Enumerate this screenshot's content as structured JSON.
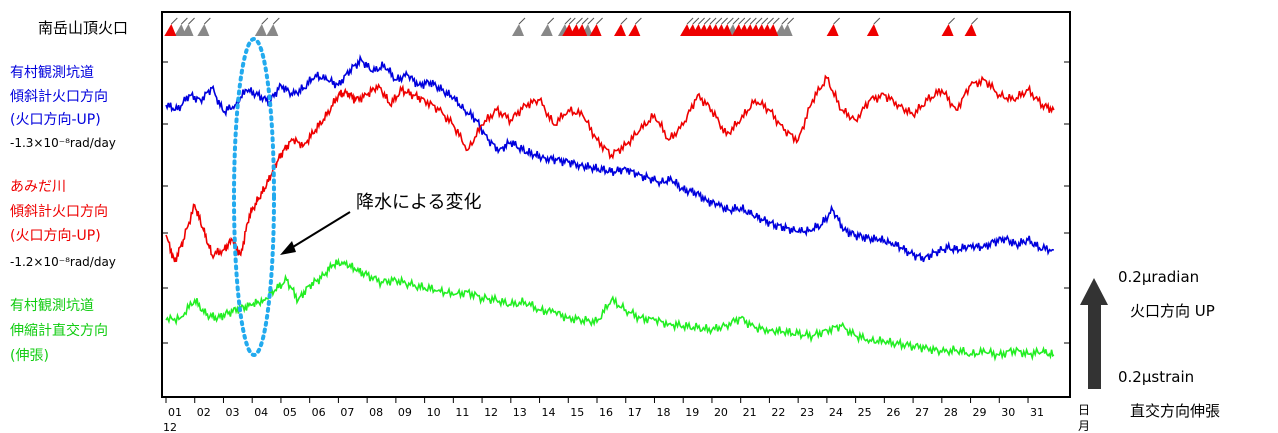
{
  "chart_data": {
    "type": "line",
    "x_unit_label": "日",
    "x_unit_label2": "月",
    "month_label": "12",
    "x_ticks": [
      "01",
      "02",
      "03",
      "04",
      "05",
      "06",
      "07",
      "08",
      "09",
      "10",
      "11",
      "12",
      "13",
      "14",
      "15",
      "16",
      "17",
      "18",
      "19",
      "20",
      "21",
      "22",
      "23",
      "24",
      "25",
      "26",
      "27",
      "28",
      "29",
      "30",
      "31"
    ],
    "eruption_row_label": "南岳山頂火口",
    "series": [
      {
        "name_lines": [
          "有村観測坑道",
          "傾斜計火口方向",
          "(火口方向-UP)"
        ],
        "trend_note": "-1.3×10⁻⁸rad/day",
        "color": "#0000dd",
        "x": [
          1,
          1.4,
          1.8,
          2.2,
          2.6,
          3,
          3.4,
          3.8,
          4.2,
          4.6,
          5,
          5.4,
          5.8,
          6.2,
          6.6,
          7,
          7.4,
          7.8,
          8.2,
          8.6,
          9,
          9.4,
          9.8,
          10.2,
          10.6,
          11,
          11.4,
          11.8,
          12.2,
          12.6,
          13,
          13.4,
          13.8,
          14.2,
          14.6,
          15,
          15.4,
          15.8,
          16.2,
          16.6,
          17,
          17.4,
          17.8,
          18.2,
          18.6,
          19,
          19.4,
          19.8,
          20.2,
          20.6,
          21,
          21.4,
          21.8,
          22.2,
          22.6,
          23,
          23.4,
          23.8,
          24.2,
          24.6,
          25,
          25.4,
          25.8,
          26.2,
          26.6,
          27,
          27.4,
          27.8,
          28.2,
          28.6,
          29,
          29.4,
          29.8,
          30.2,
          30.6,
          31,
          31.4,
          31.9
        ],
        "y": [
          105,
          110,
          95,
          100,
          88,
          112,
          105,
          90,
          95,
          102,
          85,
          95,
          88,
          75,
          80,
          85,
          70,
          60,
          72,
          65,
          80,
          75,
          85,
          82,
          90,
          98,
          110,
          120,
          140,
          150,
          142,
          150,
          155,
          158,
          160,
          162,
          165,
          168,
          170,
          172,
          168,
          175,
          178,
          182,
          180,
          190,
          192,
          200,
          205,
          210,
          208,
          215,
          220,
          225,
          228,
          232,
          230,
          225,
          210,
          230,
          235,
          238,
          240,
          242,
          248,
          255,
          258,
          252,
          248,
          250,
          245,
          248,
          242,
          238,
          245,
          240,
          248,
          250
        ]
      },
      {
        "name_lines": [
          "あみだ川",
          "傾斜計火口方向",
          "(火口方向-UP)"
        ],
        "trend_note": "-1.2×10⁻⁸rad/day",
        "color": "#ee0000",
        "x": [
          1,
          1.3,
          1.6,
          2,
          2.3,
          2.6,
          3,
          3.3,
          3.6,
          3.9,
          4.2,
          4.5,
          4.8,
          5.1,
          5.4,
          5.8,
          6.2,
          6.6,
          7,
          7.3,
          7.6,
          8,
          8.4,
          8.8,
          9.2,
          9.6,
          10,
          10.5,
          11,
          11.5,
          12,
          12.5,
          13,
          13.5,
          14,
          14.5,
          15,
          15.5,
          16,
          16.5,
          17,
          17.5,
          18,
          18.5,
          19,
          19.5,
          20,
          20.5,
          21,
          21.5,
          22,
          22.5,
          23,
          23.5,
          24,
          24.5,
          25,
          25.5,
          26,
          26.5,
          27,
          27.5,
          28,
          28.5,
          29,
          29.5,
          30,
          30.5,
          31,
          31.5,
          31.9
        ],
        "y": [
          235,
          262,
          240,
          205,
          230,
          255,
          250,
          240,
          255,
          215,
          200,
          185,
          165,
          150,
          140,
          145,
          130,
          115,
          95,
          92,
          100,
          95,
          85,
          105,
          90,
          95,
          100,
          110,
          125,
          150,
          125,
          110,
          120,
          105,
          100,
          125,
          110,
          115,
          140,
          155,
          145,
          130,
          115,
          140,
          125,
          95,
          110,
          135,
          120,
          100,
          110,
          130,
          140,
          100,
          78,
          110,
          120,
          100,
          95,
          105,
          115,
          100,
          90,
          110,
          85,
          80,
          95,
          100,
          90,
          105,
          110
        ]
      },
      {
        "name_lines": [
          "有村観測坑道",
          "伸縮計直交方向",
          "(伸張)"
        ],
        "trend_note": "",
        "color": "#22ee22",
        "x": [
          1,
          1.5,
          2,
          2.4,
          2.8,
          3.2,
          3.6,
          4,
          4.4,
          4.8,
          5.2,
          5.6,
          6,
          6.4,
          6.8,
          7.2,
          7.6,
          8,
          8.5,
          9,
          9.5,
          10,
          10.5,
          11,
          11.5,
          12,
          12.5,
          13,
          13.5,
          14,
          14.5,
          15,
          15.5,
          16,
          16.5,
          17,
          17.5,
          18,
          18.5,
          19,
          19.5,
          20,
          20.5,
          21,
          21.5,
          22,
          22.5,
          23,
          23.5,
          24,
          24.5,
          25,
          25.5,
          26,
          26.5,
          27,
          27.5,
          28,
          28.5,
          29,
          29.5,
          30,
          30.5,
          31,
          31.5,
          31.9
        ],
        "y": [
          320,
          318,
          300,
          315,
          318,
          312,
          308,
          305,
          300,
          290,
          280,
          300,
          285,
          278,
          265,
          262,
          270,
          275,
          282,
          280,
          285,
          288,
          290,
          295,
          292,
          298,
          300,
          305,
          302,
          310,
          312,
          318,
          320,
          322,
          300,
          310,
          318,
          320,
          324,
          326,
          328,
          330,
          325,
          318,
          328,
          330,
          332,
          334,
          336,
          330,
          326,
          336,
          340,
          342,
          344,
          346,
          348,
          352,
          350,
          354,
          352,
          355,
          350,
          354,
          352,
          355
        ]
      }
    ],
    "scale_labels": [
      "0.2μradian",
      "火口方向 UP",
      "0.2μstrain",
      "直交方向伸張"
    ],
    "annotation": "降水による変化",
    "eruptions": {
      "red": [
        1.15,
        15.0,
        15.25,
        15.45,
        15.95,
        16.8,
        17.3,
        19.1,
        19.3,
        19.5,
        19.7,
        19.9,
        20.1,
        20.3,
        20.5,
        20.9,
        21.1,
        21.3,
        21.5,
        21.7,
        21.9,
        22.1,
        24.2,
        25.6,
        28.2,
        29.0
      ],
      "gray": [
        1.5,
        1.75,
        2.3,
        4.3,
        4.7,
        13.25,
        14.25,
        14.85,
        15.65,
        20.7,
        22.4,
        22.6
      ]
    }
  }
}
